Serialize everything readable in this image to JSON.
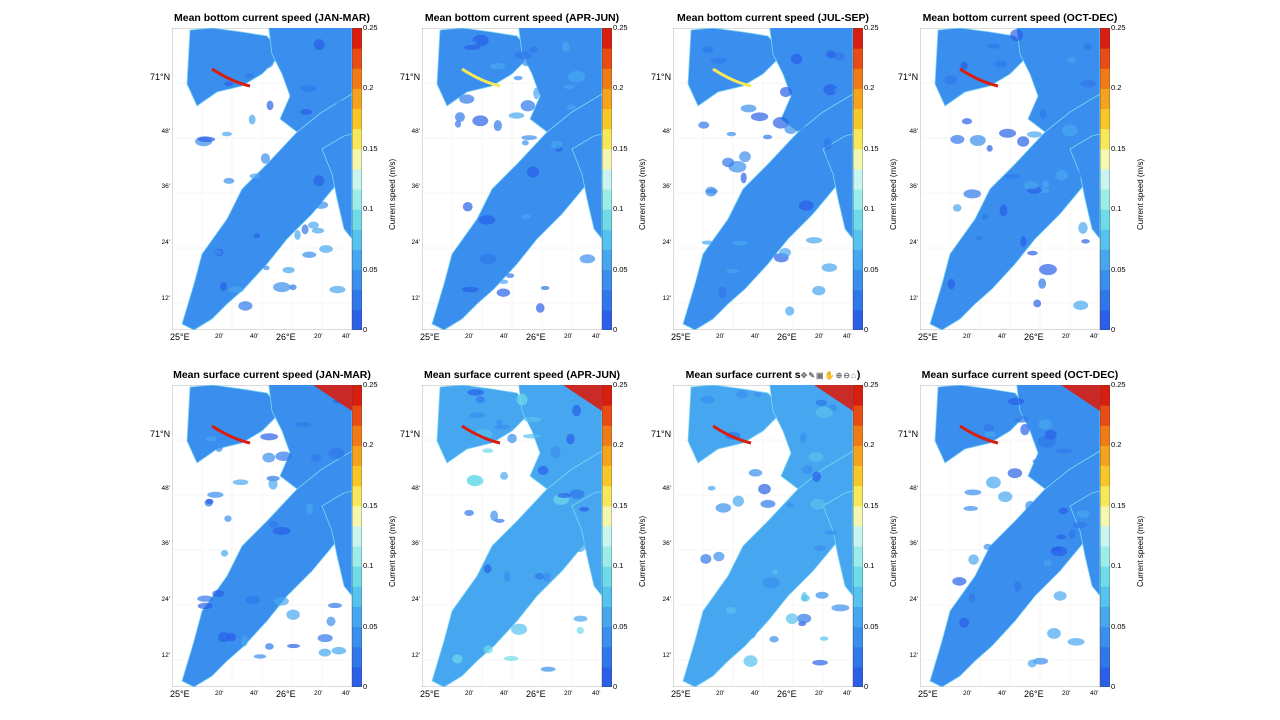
{
  "chart_data": [
    {
      "type": "heatmap",
      "title": "Mean bottom current speed (JAN-MAR)",
      "colorbar_label": "Current speed (m/s)",
      "colorbar_ticks": [
        "0",
        "0.05",
        "0.1",
        "0.15",
        "0.2",
        "0.25"
      ],
      "clim": [
        0,
        0.25
      ],
      "yticks": [
        "71°N",
        "48'",
        "36'",
        "24'",
        "12'"
      ],
      "xticks": [
        "25°E",
        "20'",
        "40'",
        "26°E",
        "20'",
        "40'"
      ],
      "dominant_speed": 0.04,
      "max_speed": 0.25
    },
    {
      "type": "heatmap",
      "title": "Mean bottom current speed (APR-JUN)",
      "colorbar_label": "Current speed (m/s)",
      "colorbar_ticks": [
        "0",
        "0.05",
        "0.1",
        "0.15",
        "0.2",
        "0.25"
      ],
      "clim": [
        0,
        0.25
      ],
      "yticks": [
        "71°N",
        "48'",
        "36'",
        "24'",
        "12'"
      ],
      "xticks": [
        "25°E",
        "20'",
        "40'",
        "26°E",
        "20'",
        "40'"
      ],
      "dominant_speed": 0.04,
      "max_speed": 0.15
    },
    {
      "type": "heatmap",
      "title": "Mean bottom current speed (JUL-SEP)",
      "colorbar_label": "Current speed (m/s)",
      "colorbar_ticks": [
        "0",
        "0.05",
        "0.1",
        "0.15",
        "0.2",
        "0.25"
      ],
      "clim": [
        0,
        0.25
      ],
      "yticks": [
        "71°N",
        "48'",
        "36'",
        "24'",
        "12'"
      ],
      "xticks": [
        "25°E",
        "20'",
        "40'",
        "26°E",
        "20'",
        "40'"
      ],
      "dominant_speed": 0.04,
      "max_speed": 0.15
    },
    {
      "type": "heatmap",
      "title": "Mean bottom current speed (OCT-DEC)",
      "colorbar_label": "Current speed (m/s)",
      "colorbar_ticks": [
        "0",
        "0.05",
        "0.1",
        "0.15",
        "0.2",
        "0.25"
      ],
      "clim": [
        0,
        0.25
      ],
      "yticks": [
        "71°N",
        "48'",
        "36'",
        "24'",
        "12'"
      ],
      "xticks": [
        "25°E",
        "20'",
        "40'",
        "26°E",
        "20'",
        "40'"
      ],
      "dominant_speed": 0.04,
      "max_speed": 0.25
    },
    {
      "type": "heatmap",
      "title": "Mean surface current speed (JAN-MAR)",
      "colorbar_label": "Current speed (m/s)",
      "colorbar_ticks": [
        "0",
        "0.05",
        "0.1",
        "0.15",
        "0.2",
        "0.25"
      ],
      "clim": [
        0,
        0.25
      ],
      "yticks": [
        "71°N",
        "48'",
        "36'",
        "24'",
        "12'"
      ],
      "xticks": [
        "25°E",
        "20'",
        "40'",
        "26°E",
        "20'",
        "40'"
      ],
      "dominant_speed": 0.04,
      "max_speed": 0.25
    },
    {
      "type": "heatmap",
      "title": "Mean surface current speed (APR-JUN)",
      "colorbar_label": "Current speed (m/s)",
      "colorbar_ticks": [
        "0",
        "0.05",
        "0.1",
        "0.15",
        "0.2",
        "0.25"
      ],
      "clim": [
        0,
        0.25
      ],
      "yticks": [
        "71°N",
        "48'",
        "36'",
        "24'",
        "12'"
      ],
      "xticks": [
        "25°E",
        "20'",
        "40'",
        "26°E",
        "20'",
        "40'"
      ],
      "dominant_speed": 0.06,
      "max_speed": 0.25
    },
    {
      "type": "heatmap",
      "title": "Mean surface current s",
      "title_suffix": ")",
      "colorbar_label": "Current speed (m/s)",
      "colorbar_ticks": [
        "0",
        "0.05",
        "0.1",
        "0.15",
        "0.2",
        "0.25"
      ],
      "clim": [
        0,
        0.25
      ],
      "yticks": [
        "71°N",
        "48'",
        "36'",
        "24'",
        "12'"
      ],
      "xticks": [
        "25°E",
        "20'",
        "40'",
        "26°E",
        "20'",
        "40'"
      ],
      "dominant_speed": 0.05,
      "max_speed": 0.25
    },
    {
      "type": "heatmap",
      "title": "Mean surface current speed (OCT-DEC)",
      "colorbar_label": "Current speed (m/s)",
      "colorbar_ticks": [
        "0",
        "0.05",
        "0.1",
        "0.15",
        "0.2",
        "0.25"
      ],
      "clim": [
        0,
        0.25
      ],
      "yticks": [
        "71°N",
        "48'",
        "36'",
        "24'",
        "12'"
      ],
      "xticks": [
        "25°E",
        "20'",
        "40'",
        "26°E",
        "20'",
        "40'"
      ],
      "dominant_speed": 0.04,
      "max_speed": 0.25
    }
  ],
  "colormap": [
    "#2a5fe8",
    "#2f77ea",
    "#3a8eee",
    "#47a6f0",
    "#58c2ee",
    "#6fdbe8",
    "#9cecea",
    "#c8f5f0",
    "#f4f7b0",
    "#f6e85a",
    "#f7c72a",
    "#f5a31c",
    "#f07a16",
    "#e84c12",
    "#d91e0f"
  ],
  "land_color": "#ffffff",
  "toolbar": {
    "icons": [
      "pan-icon",
      "brush-icon",
      "save-icon",
      "grab-icon",
      "zoom-in-icon",
      "zoom-out-icon",
      "home-icon"
    ]
  }
}
